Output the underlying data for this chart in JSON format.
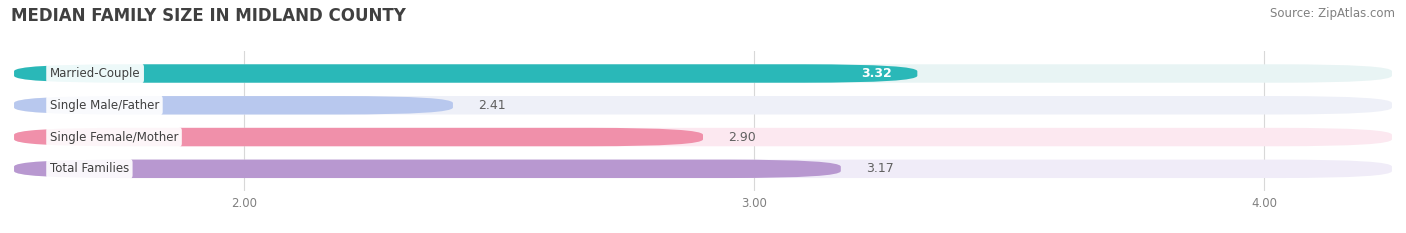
{
  "title": "MEDIAN FAMILY SIZE IN MIDLAND COUNTY",
  "source": "Source: ZipAtlas.com",
  "categories": [
    "Married-Couple",
    "Single Male/Father",
    "Single Female/Mother",
    "Total Families"
  ],
  "values": [
    3.32,
    2.41,
    2.9,
    3.17
  ],
  "bar_colors": [
    "#2ab8b8",
    "#b8c8ee",
    "#f090aa",
    "#b898d0"
  ],
  "bar_bg_colors": [
    "#e8f4f4",
    "#eef0f8",
    "#fce8f0",
    "#f0ecf8"
  ],
  "label_colors": [
    "#ffffff",
    "#707070",
    "#707070",
    "#707070"
  ],
  "xlim_min": 1.55,
  "xlim_max": 4.25,
  "xticks": [
    2.0,
    3.0,
    4.0
  ],
  "xtick_labels": [
    "2.00",
    "3.00",
    "4.00"
  ],
  "title_fontsize": 12,
  "source_fontsize": 8.5,
  "bar_label_fontsize": 9,
  "category_fontsize": 8.5,
  "tick_fontsize": 8.5,
  "background_color": "#ffffff",
  "bar_height": 0.58
}
